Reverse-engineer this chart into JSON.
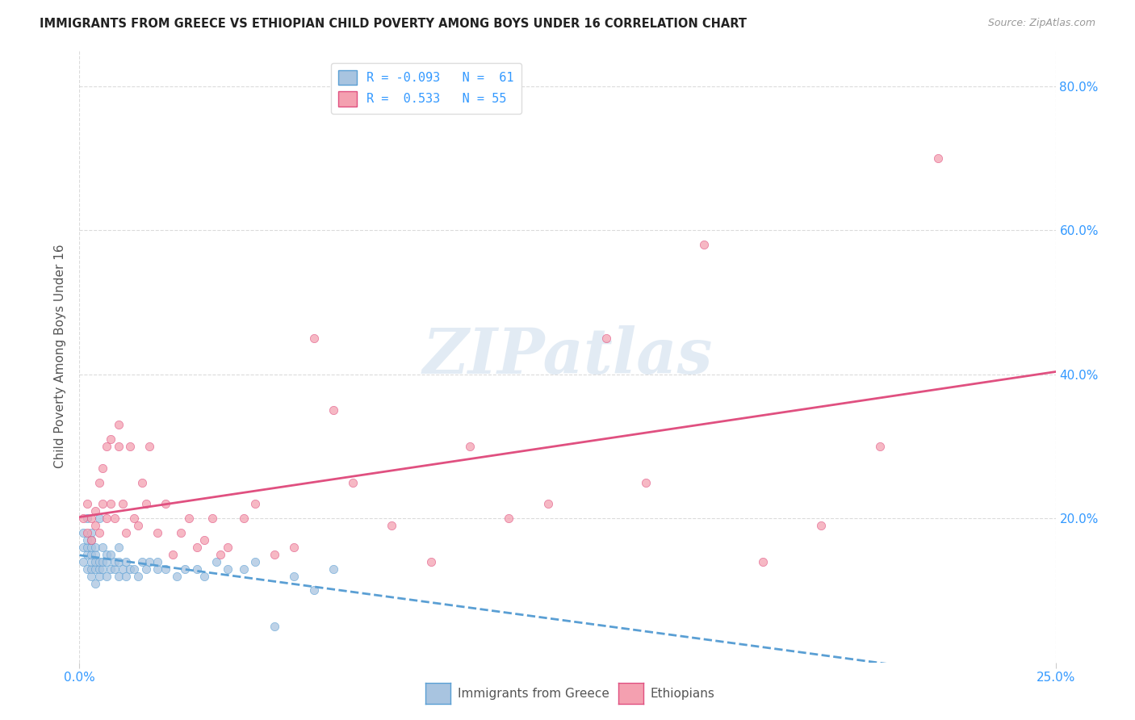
{
  "title": "IMMIGRANTS FROM GREECE VS ETHIOPIAN CHILD POVERTY AMONG BOYS UNDER 16 CORRELATION CHART",
  "source": "Source: ZipAtlas.com",
  "ylabel": "Child Poverty Among Boys Under 16",
  "yaxis_labels": [
    "20.0%",
    "40.0%",
    "60.0%",
    "80.0%"
  ],
  "legend_entry1": "R = -0.093   N =  61",
  "legend_entry2": "R =  0.533   N = 55",
  "legend_label1": "Immigrants from Greece",
  "legend_label2": "Ethiopians",
  "watermark": "ZIPatlas",
  "background_color": "#ffffff",
  "grid_color": "#cccccc",
  "scatter_color_greece": "#a8c4e0",
  "scatter_edge_greece": "#5a9fd4",
  "scatter_color_ethiopia": "#f4a0b0",
  "scatter_edge_ethiopia": "#e05080",
  "line_color_greece": "#5a9fd4",
  "line_color_ethiopia": "#e05080",
  "xlim": [
    0.0,
    0.25
  ],
  "ylim": [
    0.0,
    0.85
  ],
  "greece_scatter_x": [
    0.001,
    0.001,
    0.001,
    0.002,
    0.002,
    0.002,
    0.002,
    0.002,
    0.003,
    0.003,
    0.003,
    0.003,
    0.003,
    0.003,
    0.003,
    0.004,
    0.004,
    0.004,
    0.004,
    0.004,
    0.005,
    0.005,
    0.005,
    0.005,
    0.006,
    0.006,
    0.006,
    0.007,
    0.007,
    0.007,
    0.008,
    0.008,
    0.009,
    0.009,
    0.01,
    0.01,
    0.01,
    0.011,
    0.012,
    0.012,
    0.013,
    0.014,
    0.015,
    0.016,
    0.017,
    0.018,
    0.02,
    0.02,
    0.022,
    0.025,
    0.027,
    0.03,
    0.032,
    0.035,
    0.038,
    0.042,
    0.045,
    0.05,
    0.055,
    0.06,
    0.065
  ],
  "greece_scatter_y": [
    0.14,
    0.16,
    0.18,
    0.13,
    0.15,
    0.16,
    0.17,
    0.2,
    0.12,
    0.13,
    0.14,
    0.15,
    0.16,
    0.17,
    0.18,
    0.11,
    0.13,
    0.14,
    0.15,
    0.16,
    0.12,
    0.13,
    0.14,
    0.2,
    0.13,
    0.14,
    0.16,
    0.12,
    0.14,
    0.15,
    0.13,
    0.15,
    0.13,
    0.14,
    0.12,
    0.14,
    0.16,
    0.13,
    0.12,
    0.14,
    0.13,
    0.13,
    0.12,
    0.14,
    0.13,
    0.14,
    0.13,
    0.14,
    0.13,
    0.12,
    0.13,
    0.13,
    0.12,
    0.14,
    0.13,
    0.13,
    0.14,
    0.05,
    0.12,
    0.1,
    0.13
  ],
  "ethiopia_scatter_x": [
    0.001,
    0.002,
    0.002,
    0.003,
    0.003,
    0.004,
    0.004,
    0.005,
    0.005,
    0.006,
    0.006,
    0.007,
    0.007,
    0.008,
    0.008,
    0.009,
    0.01,
    0.01,
    0.011,
    0.012,
    0.013,
    0.014,
    0.015,
    0.016,
    0.017,
    0.018,
    0.02,
    0.022,
    0.024,
    0.026,
    0.028,
    0.03,
    0.032,
    0.034,
    0.036,
    0.038,
    0.042,
    0.045,
    0.05,
    0.055,
    0.06,
    0.065,
    0.07,
    0.08,
    0.09,
    0.1,
    0.11,
    0.12,
    0.135,
    0.145,
    0.16,
    0.175,
    0.19,
    0.205,
    0.22
  ],
  "ethiopia_scatter_y": [
    0.2,
    0.18,
    0.22,
    0.17,
    0.2,
    0.19,
    0.21,
    0.25,
    0.18,
    0.22,
    0.27,
    0.2,
    0.3,
    0.22,
    0.31,
    0.2,
    0.3,
    0.33,
    0.22,
    0.18,
    0.3,
    0.2,
    0.19,
    0.25,
    0.22,
    0.3,
    0.18,
    0.22,
    0.15,
    0.18,
    0.2,
    0.16,
    0.17,
    0.2,
    0.15,
    0.16,
    0.2,
    0.22,
    0.15,
    0.16,
    0.45,
    0.35,
    0.25,
    0.19,
    0.14,
    0.3,
    0.2,
    0.22,
    0.45,
    0.25,
    0.58,
    0.14,
    0.19,
    0.3,
    0.7
  ]
}
